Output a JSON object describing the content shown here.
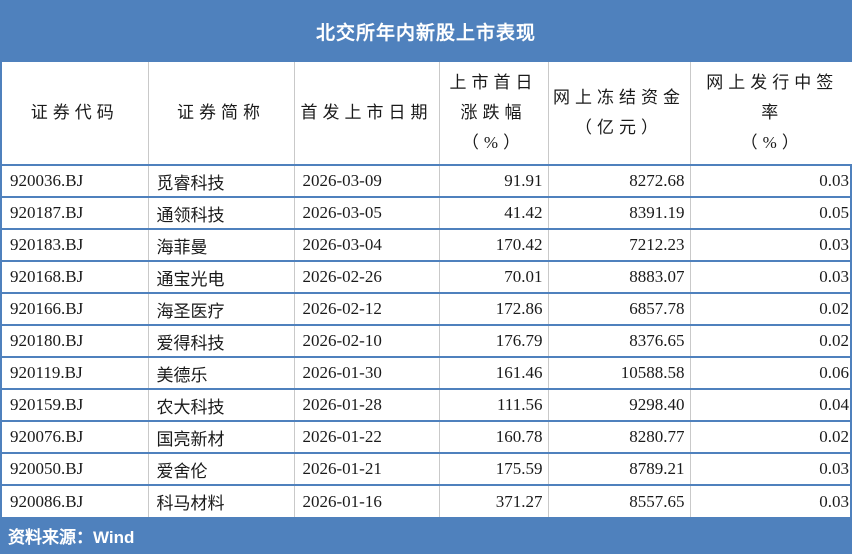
{
  "title": "北交所年内新股上市表现",
  "source_note": "资料来源：Wind",
  "colors": {
    "accent_blue": "#4F81BD",
    "row_border_blue": "#4F81BD",
    "grid_gray": "#C9C9C9",
    "text": "#1A1A1A",
    "title_text": "#FFFFFF"
  },
  "table": {
    "columns": [
      {
        "label": "证券代码",
        "align": "left"
      },
      {
        "label": "证券简称",
        "align": "left"
      },
      {
        "label": "首发上市日期",
        "align": "left"
      },
      {
        "label": "上市首日\n涨跌幅\n（%）",
        "align": "right"
      },
      {
        "label": "网上冻结资金\n（亿元）",
        "align": "right"
      },
      {
        "label": "网上发行中签\n率\n（%）",
        "align": "right"
      }
    ],
    "rows": [
      [
        "920036.BJ",
        "觅睿科技",
        "2026-03-09",
        "91.91",
        "8272.68",
        "0.03"
      ],
      [
        "920187.BJ",
        "通领科技",
        "2026-03-05",
        "41.42",
        "8391.19",
        "0.05"
      ],
      [
        "920183.BJ",
        "海菲曼",
        "2026-03-04",
        "170.42",
        "7212.23",
        "0.03"
      ],
      [
        "920168.BJ",
        "通宝光电",
        "2026-02-26",
        "70.01",
        "8883.07",
        "0.03"
      ],
      [
        "920166.BJ",
        "海圣医疗",
        "2026-02-12",
        "172.86",
        "6857.78",
        "0.02"
      ],
      [
        "920180.BJ",
        "爱得科技",
        "2026-02-10",
        "176.79",
        "8376.65",
        "0.02"
      ],
      [
        "920119.BJ",
        "美德乐",
        "2026-01-30",
        "161.46",
        "10588.58",
        "0.06"
      ],
      [
        "920159.BJ",
        "农大科技",
        "2026-01-28",
        "111.56",
        "9298.40",
        "0.04"
      ],
      [
        "920076.BJ",
        "国亮新材",
        "2026-01-22",
        "160.78",
        "8280.77",
        "0.02"
      ],
      [
        "920050.BJ",
        "爱舍伦",
        "2026-01-21",
        "175.59",
        "8789.21",
        "0.03"
      ],
      [
        "920086.BJ",
        "科马材料",
        "2026-01-16",
        "371.27",
        "8557.65",
        "0.03"
      ]
    ]
  }
}
